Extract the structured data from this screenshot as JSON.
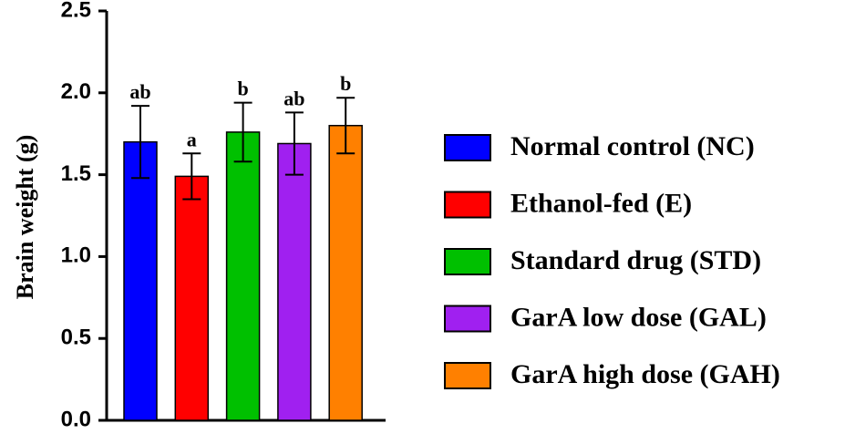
{
  "chart_data": {
    "type": "bar",
    "ylabel": "Brain weight (g)",
    "ylim": [
      0,
      2.5
    ],
    "yticks": [
      "0.0",
      "0.5",
      "1.0",
      "1.5",
      "2.0",
      "2.5"
    ],
    "grid": false,
    "legend_position": "right",
    "categories": [
      "Normal control (NC)",
      "Ethanol-fed (E)",
      "Standard drug (STD)",
      "GarA low dose (GAL)",
      "GarA high dose (GAH)"
    ],
    "values": [
      1.7,
      1.49,
      1.76,
      1.69,
      1.8
    ],
    "errors": [
      0.22,
      0.14,
      0.18,
      0.19,
      0.17
    ],
    "significance": [
      "ab",
      "a",
      "b",
      "ab",
      "b"
    ],
    "colors": [
      "#0000ff",
      "#ff0000",
      "#00c000",
      "#a020f0",
      "#ff8000"
    ]
  }
}
